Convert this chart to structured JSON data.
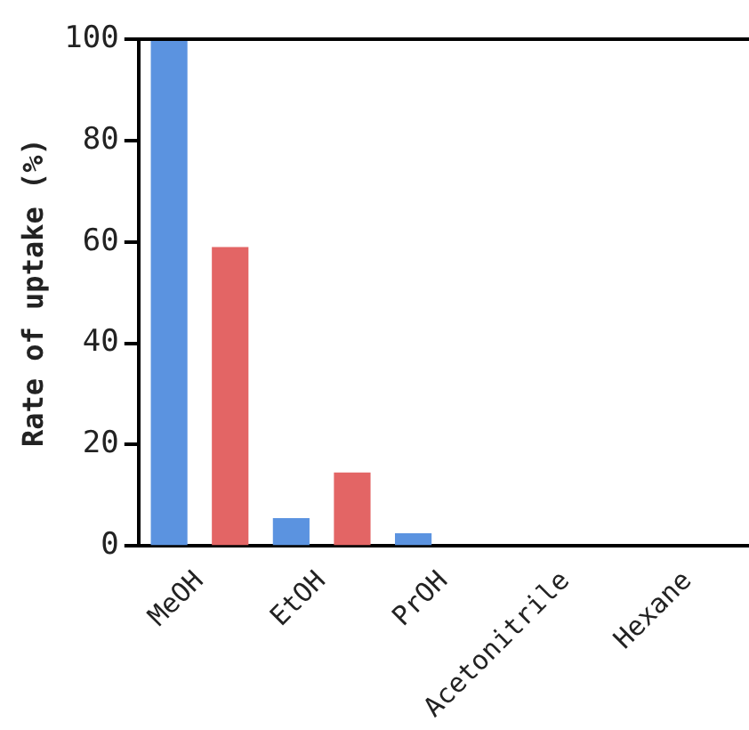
{
  "chart_data": {
    "type": "bar",
    "ylabel": "Rate of uptake (%)",
    "categories": [
      "MeOH",
      "EtOH",
      "PrOH",
      "Acetonitrile",
      "Hexane"
    ],
    "series": [
      {
        "color": "#5b93e0",
        "values": [
          100,
          5.5,
          2.5,
          0,
          0
        ]
      },
      {
        "color": "#e36565",
        "values": [
          59,
          14.5,
          0,
          0,
          0
        ]
      }
    ],
    "ylim": [
      0,
      100
    ],
    "yticks": [
      0,
      20,
      40,
      60,
      80,
      100
    ],
    "grid": false,
    "legend": false
  }
}
